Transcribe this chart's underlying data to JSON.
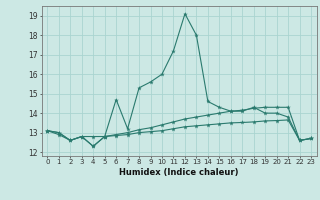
{
  "title": "",
  "xlabel": "Humidex (Indice chaleur)",
  "background_color": "#cce8e4",
  "grid_color": "#aad4d0",
  "line_color": "#2a7a6e",
  "xlim": [
    -0.5,
    23.5
  ],
  "ylim": [
    11.8,
    19.5
  ],
  "yticks": [
    12,
    13,
    14,
    15,
    16,
    17,
    18,
    19
  ],
  "xticks": [
    0,
    1,
    2,
    3,
    4,
    5,
    6,
    7,
    8,
    9,
    10,
    11,
    12,
    13,
    14,
    15,
    16,
    17,
    18,
    19,
    20,
    21,
    22,
    23
  ],
  "series1": [
    13.1,
    13.0,
    12.6,
    12.8,
    12.3,
    12.8,
    14.7,
    13.2,
    15.3,
    15.6,
    16.0,
    17.2,
    19.1,
    18.0,
    14.6,
    14.3,
    14.1,
    14.1,
    14.3,
    14.0,
    14.0,
    13.8,
    12.6,
    12.7
  ],
  "series2": [
    13.1,
    13.0,
    12.6,
    12.8,
    12.8,
    12.8,
    12.9,
    13.0,
    13.15,
    13.25,
    13.4,
    13.55,
    13.7,
    13.8,
    13.9,
    14.0,
    14.1,
    14.15,
    14.25,
    14.3,
    14.3,
    14.3,
    12.6,
    12.7
  ],
  "series3": [
    13.1,
    12.9,
    12.6,
    12.8,
    12.3,
    12.8,
    12.85,
    12.9,
    13.0,
    13.05,
    13.1,
    13.2,
    13.3,
    13.35,
    13.4,
    13.45,
    13.5,
    13.52,
    13.55,
    13.6,
    13.62,
    13.65,
    12.6,
    12.7
  ]
}
